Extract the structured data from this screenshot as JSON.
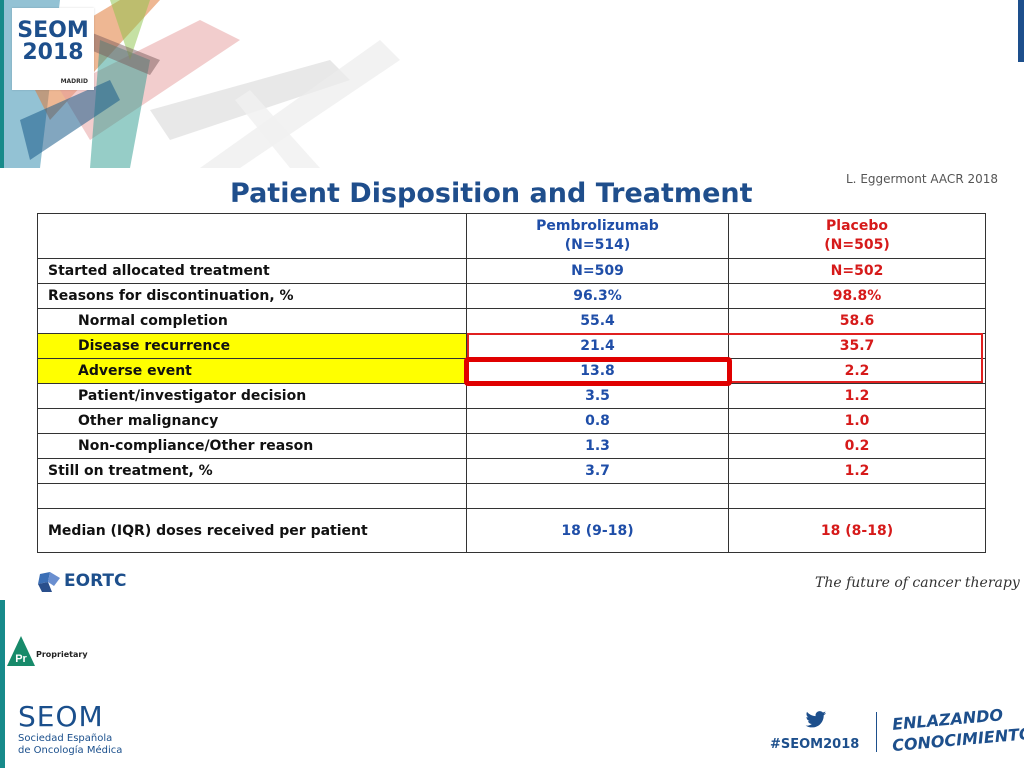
{
  "logo": {
    "brand": "SEOM",
    "year": "2018",
    "city": "MADRID"
  },
  "citation": "L. Eggermont AACR 2018",
  "title": "Patient Disposition and Treatment",
  "table": {
    "headers": {
      "arm1_name": "Pembrolizumab",
      "arm1_n": "(N=514)",
      "arm2_name": "Placebo",
      "arm2_n": "(N=505)"
    },
    "rows": [
      {
        "label": "Started allocated treatment",
        "pembro": "N=509",
        "placebo": "N=502"
      },
      {
        "label": "Reasons for discontinuation, %",
        "pembro": "96.3%",
        "placebo": "98.8%"
      },
      {
        "label": "Normal completion",
        "pembro": "55.4",
        "placebo": "58.6"
      },
      {
        "label": "Disease recurrence",
        "pembro": "21.4",
        "placebo": "35.7"
      },
      {
        "label": "Adverse event",
        "pembro": "13.8",
        "placebo": "2.2"
      },
      {
        "label": "Patient/investigator decision",
        "pembro": "3.5",
        "placebo": "1.2"
      },
      {
        "label": "Other malignancy",
        "pembro": "0.8",
        "placebo": "1.0"
      },
      {
        "label": "Non-compliance/Other reason",
        "pembro": "1.3",
        "placebo": "0.2"
      },
      {
        "label": "Still on treatment, %",
        "pembro": "3.7",
        "placebo": "1.2"
      },
      {
        "label": "",
        "pembro": "",
        "placebo": ""
      },
      {
        "label": "Median (IQR) doses received per patient",
        "pembro": "18 (9-18)",
        "placebo": "18 (8-18)"
      }
    ]
  },
  "footer": {
    "eortc": "EORTC",
    "tagline": "The future of cancer therapy",
    "proprietary": "Proprietary",
    "proprietary_badge": "Pr",
    "seom": "SEOM",
    "seom_org_line1": "Sociedad Española",
    "seom_org_line2": "de Oncología Médica",
    "hashtag": "#SEOM2018",
    "slogan_line1": "ENLAZANDO",
    "slogan_line2": "CONOCIMIENTO"
  },
  "colors": {
    "arm1": "#1f4ea8",
    "arm2": "#d61a1a",
    "highlight": "#ffff00",
    "accent": "#178a8a",
    "brand": "#1d4f8c"
  },
  "icons": {
    "twitter": "twitter-bird-icon",
    "eortc": "eortc-logo-icon",
    "proprietary": "pr-triangle-icon"
  }
}
